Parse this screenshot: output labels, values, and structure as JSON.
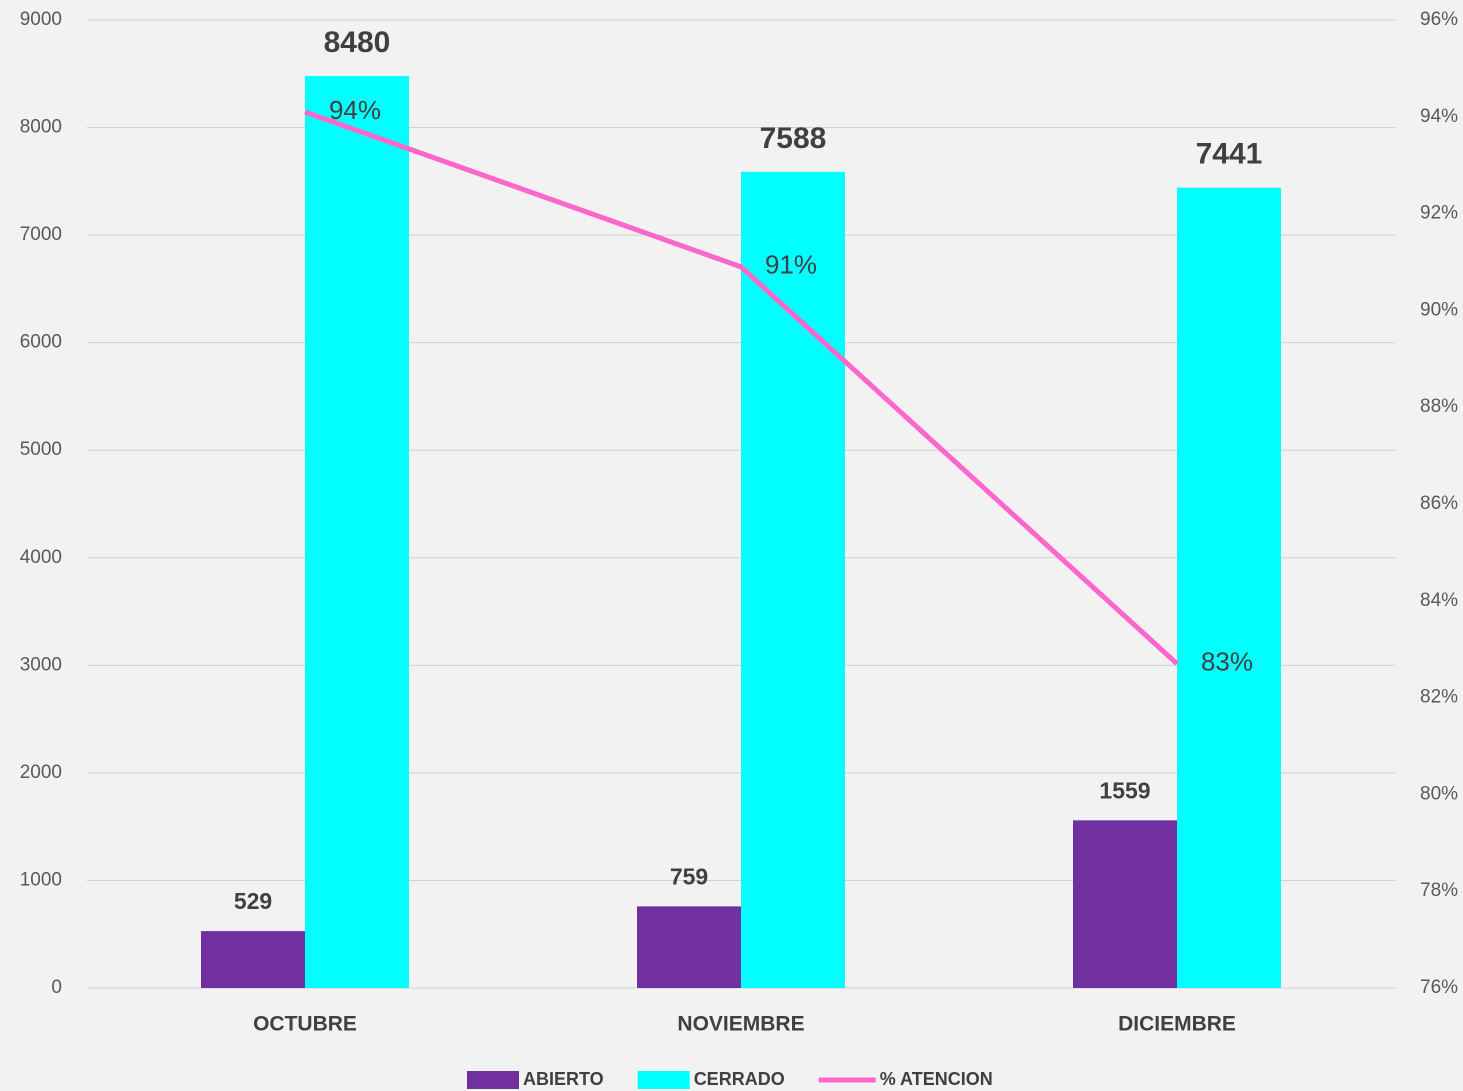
{
  "chart_data": {
    "type": "bar",
    "categories": [
      "OCTUBRE",
      "NOVIEMBRE",
      "DICIEMBRE"
    ],
    "series": [
      {
        "name": "ABIERTO",
        "color": "#7030a0",
        "values": [
          529,
          759,
          1559
        ]
      },
      {
        "name": "CERRADO",
        "color": "#00ffff",
        "values": [
          8480,
          7588,
          7441
        ]
      },
      {
        "name": "% ATENCION",
        "type": "line",
        "axis": "y2",
        "color": "#ff66cc",
        "values": [
          94.1,
          90.9,
          82.7
        ],
        "value_labels": [
          "94%",
          "91%",
          "83%"
        ]
      }
    ],
    "ylim": [
      0,
      9000
    ],
    "yticks": [
      0,
      1000,
      2000,
      3000,
      4000,
      5000,
      6000,
      7000,
      8000,
      9000
    ],
    "y2lim": [
      76,
      96
    ],
    "y2ticks": [
      {
        "value": 76,
        "label": "76%"
      },
      {
        "value": 78,
        "label": "78%"
      },
      {
        "value": 80,
        "label": "80%"
      },
      {
        "value": 82,
        "label": "82%"
      },
      {
        "value": 84,
        "label": "84%"
      },
      {
        "value": 86,
        "label": "86%"
      },
      {
        "value": 88,
        "label": "88%"
      },
      {
        "value": 90,
        "label": "90%"
      },
      {
        "value": 92,
        "label": "92%"
      },
      {
        "value": 94,
        "label": "94%"
      },
      {
        "value": 96,
        "label": "96%"
      }
    ],
    "grid": true,
    "legend": "bottom"
  }
}
